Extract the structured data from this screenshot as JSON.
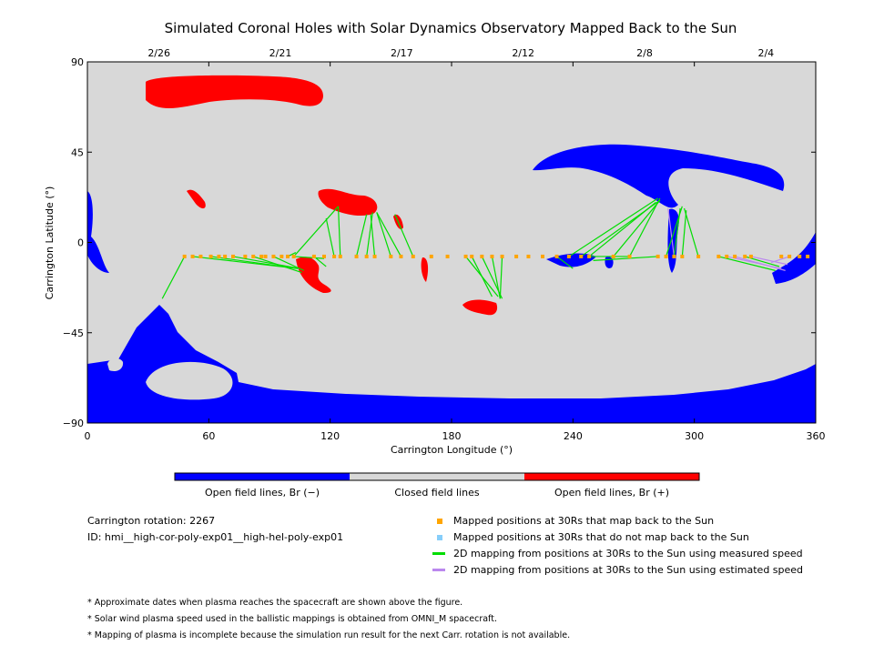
{
  "colors": {
    "open_negative": "#0000ff",
    "closed": "#d8d8d8",
    "open_positive": "#ff0000",
    "mapped_point": "#ffa500",
    "unmapped_point": "#87cefa",
    "measured_line": "#00dd00",
    "estimated_line": "#bb88ee"
  },
  "chart_data": {
    "type": "map",
    "title": "Simulated Coronal Holes with Solar Dynamics Observatory Mapped Back to the Sun",
    "xlabel": "Carrington Longitude (°)",
    "ylabel": "Carrington Latitude (°)",
    "xlim": [
      0,
      360
    ],
    "ylim": [
      -90,
      90
    ],
    "x_ticks": [
      "0",
      "60",
      "120",
      "180",
      "240",
      "300",
      "360"
    ],
    "y_ticks": [
      "90",
      "45",
      "0",
      "−45",
      "−90"
    ],
    "top_axis_dates": [
      {
        "lon": 30,
        "label": "2/26"
      },
      {
        "lon": 90,
        "label": "2/21"
      },
      {
        "lon": 150,
        "label": "2/17"
      },
      {
        "lon": 210,
        "label": "2/12"
      },
      {
        "lon": 270,
        "label": "2/8"
      },
      {
        "lon": 330,
        "label": "2/4"
      }
    ],
    "spacecraft_points_lat": -7,
    "spacecraft_lons": [
      48,
      52,
      56,
      61,
      65,
      68,
      72,
      78,
      82,
      86,
      88,
      92,
      96,
      99,
      102,
      112,
      117,
      122,
      125,
      133,
      138,
      142,
      150,
      155,
      161,
      170,
      178,
      187,
      190,
      195,
      200,
      205,
      212,
      218,
      225,
      232,
      238,
      244,
      248,
      260,
      268,
      282,
      286,
      290,
      294,
      302,
      312,
      316,
      320,
      325,
      328,
      343,
      347,
      352,
      356
    ],
    "measured_mappings": [
      {
        "from": 48,
        "to": [
          37,
          -28
        ]
      },
      {
        "from": 52,
        "to": [
          104,
          -13
        ]
      },
      {
        "from": 61,
        "to": [
          104,
          -13
        ]
      },
      {
        "from": 72,
        "to": [
          105,
          -13
        ]
      },
      {
        "from": 82,
        "to": [
          106,
          -15
        ]
      },
      {
        "from": 92,
        "to": [
          107,
          -14
        ]
      },
      {
        "from": 99,
        "to": [
          103,
          -5
        ]
      },
      {
        "from": 102,
        "to": [
          117,
          -8
        ]
      },
      {
        "from": 112,
        "to": [
          118,
          -12
        ]
      },
      {
        "from": 102,
        "to": [
          124,
          18
        ]
      },
      {
        "from": 125,
        "to": [
          124,
          18
        ]
      },
      {
        "from": 122,
        "to": [
          118,
          12
        ]
      },
      {
        "from": 133,
        "to": [
          138,
          14
        ]
      },
      {
        "from": 138,
        "to": [
          141,
          15
        ]
      },
      {
        "from": 142,
        "to": [
          140,
          14
        ]
      },
      {
        "from": 150,
        "to": [
          143,
          15
        ]
      },
      {
        "from": 155,
        "to": [
          143,
          15
        ]
      },
      {
        "from": 161,
        "to": [
          152,
          14
        ]
      },
      {
        "from": 187,
        "to": [
          203,
          -27
        ]
      },
      {
        "from": 190,
        "to": [
          200,
          -27
        ]
      },
      {
        "from": 195,
        "to": [
          205,
          -28
        ]
      },
      {
        "from": 200,
        "to": [
          204,
          -28
        ]
      },
      {
        "from": 205,
        "to": [
          204,
          -28
        ]
      },
      {
        "from": 232,
        "to": [
          240,
          -13
        ]
      },
      {
        "from": 238,
        "to": [
          282,
          22
        ]
      },
      {
        "from": 244,
        "to": [
          283,
          21
        ]
      },
      {
        "from": 248,
        "to": [
          281,
          20
        ]
      },
      {
        "from": 260,
        "to": [
          283,
          21
        ]
      },
      {
        "from": 268,
        "to": [
          283,
          22
        ]
      },
      {
        "from": 286,
        "to": [
          294,
          18
        ]
      },
      {
        "from": 290,
        "to": [
          293,
          17
        ]
      },
      {
        "from": 294,
        "to": [
          296,
          16
        ]
      },
      {
        "from": 302,
        "to": [
          295,
          17
        ]
      },
      {
        "from": 312,
        "to": [
          340,
          -14
        ]
      },
      {
        "from": 325,
        "to": [
          342,
          -12
        ]
      },
      {
        "from": 268,
        "to": [
          248,
          -7
        ]
      },
      {
        "from": 282,
        "to": [
          250,
          -9
        ]
      }
    ],
    "estimated_mappings": [
      {
        "from": 290,
        "to": [
          287,
          17
        ]
      },
      {
        "from": 316,
        "to": [
          343,
          -13
        ]
      },
      {
        "from": 320,
        "to": [
          345,
          -14
        ]
      },
      {
        "from": 328,
        "to": [
          346,
          -11
        ]
      },
      {
        "from": 347,
        "to": [
          338,
          -10
        ]
      }
    ],
    "colorbar": [
      {
        "label": "Open field lines, Br (−)",
        "color": "#0000ff"
      },
      {
        "label": "Closed field lines",
        "color": "#d8d8d8"
      },
      {
        "label": "Open field lines, Br (+)",
        "color": "#ff0000"
      }
    ]
  },
  "info": {
    "rotation": "Carrington rotation: 2267",
    "id": "ID: hmi__high-cor-poly-exp01__high-hel-poly-exp01"
  },
  "legend": [
    {
      "type": "square",
      "color": "#ffa500",
      "label": "Mapped positions at 30Rs that map back to the Sun"
    },
    {
      "type": "square",
      "color": "#87cefa",
      "label": "Mapped positions at 30Rs that do not map back to the Sun"
    },
    {
      "type": "line",
      "color": "#00dd00",
      "label": "2D mapping from positions at 30Rs to the Sun using measured speed"
    },
    {
      "type": "line",
      "color": "#bb88ee",
      "label": "2D mapping from positions at 30Rs to the Sun using estimated speed"
    }
  ],
  "notes": [
    "* Approximate dates when plasma reaches the spacecraft are shown above the figure.",
    "* Solar wind plasma speed used in the ballistic mappings is obtained from OMNI_M spacecraft.",
    "* Mapping of plasma is incomplete because the simulation run result for the next Carr. rotation is not available."
  ]
}
